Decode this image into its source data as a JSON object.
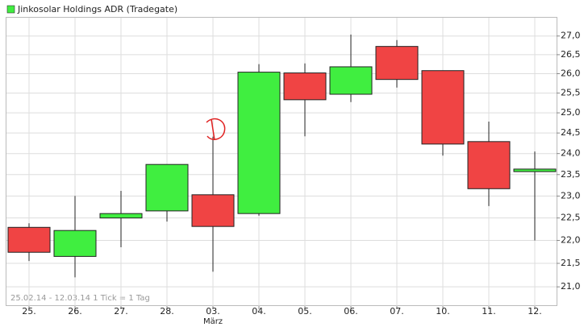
{
  "chart_data": {
    "type": "candlestick",
    "legend": "Jinkosolar Holdings ADR (Tradegate)",
    "legend_color": "#40ee40",
    "footnote": "25.02.14 - 12.03.14   1 Tick = 1 Tag",
    "categories": [
      "25.",
      "26.",
      "27.",
      "28.",
      "03.",
      "04.",
      "05.",
      "06.",
      "07.",
      "10.",
      "11.",
      "12."
    ],
    "x_sublabels": [
      null,
      null,
      null,
      null,
      "März",
      null,
      null,
      null,
      null,
      null,
      null,
      null
    ],
    "open": [
      22.29,
      21.65,
      22.5,
      22.66,
      23.03,
      22.6,
      26.02,
      25.47,
      26.72,
      26.08,
      24.29,
      23.57
    ],
    "high": [
      22.38,
      23.0,
      23.12,
      23.74,
      24.41,
      26.25,
      26.27,
      27.04,
      26.89,
      26.08,
      24.78,
      24.05
    ],
    "low": [
      21.55,
      21.2,
      21.85,
      22.42,
      21.32,
      22.55,
      24.42,
      25.27,
      25.64,
      23.95,
      22.77,
      22.0
    ],
    "close": [
      21.74,
      22.22,
      22.6,
      23.74,
      22.31,
      26.04,
      25.33,
      26.18,
      25.85,
      24.23,
      23.17,
      23.63
    ],
    "up_color": "#40ee40",
    "down_color": "#f04444",
    "log": true,
    "ylim": [
      20.6,
      27.5
    ],
    "yticks": [
      {
        "value": 21,
        "label": "21,0"
      },
      {
        "value": 21.5,
        "label": "21,5"
      },
      {
        "value": 22,
        "label": "22,0"
      },
      {
        "value": 22.5,
        "label": "22,5"
      },
      {
        "value": 23,
        "label": "23,0"
      },
      {
        "value": 23.5,
        "label": "23,5"
      },
      {
        "value": 24,
        "label": "24,0"
      },
      {
        "value": 24.5,
        "label": "24,5"
      },
      {
        "value": 25,
        "label": "25,0"
      },
      {
        "value": 25.5,
        "label": "25,5"
      },
      {
        "value": 26,
        "label": "26,0"
      },
      {
        "value": 26.5,
        "label": "26,5"
      },
      {
        "value": 27,
        "label": "27,0"
      }
    ],
    "grid": true
  }
}
